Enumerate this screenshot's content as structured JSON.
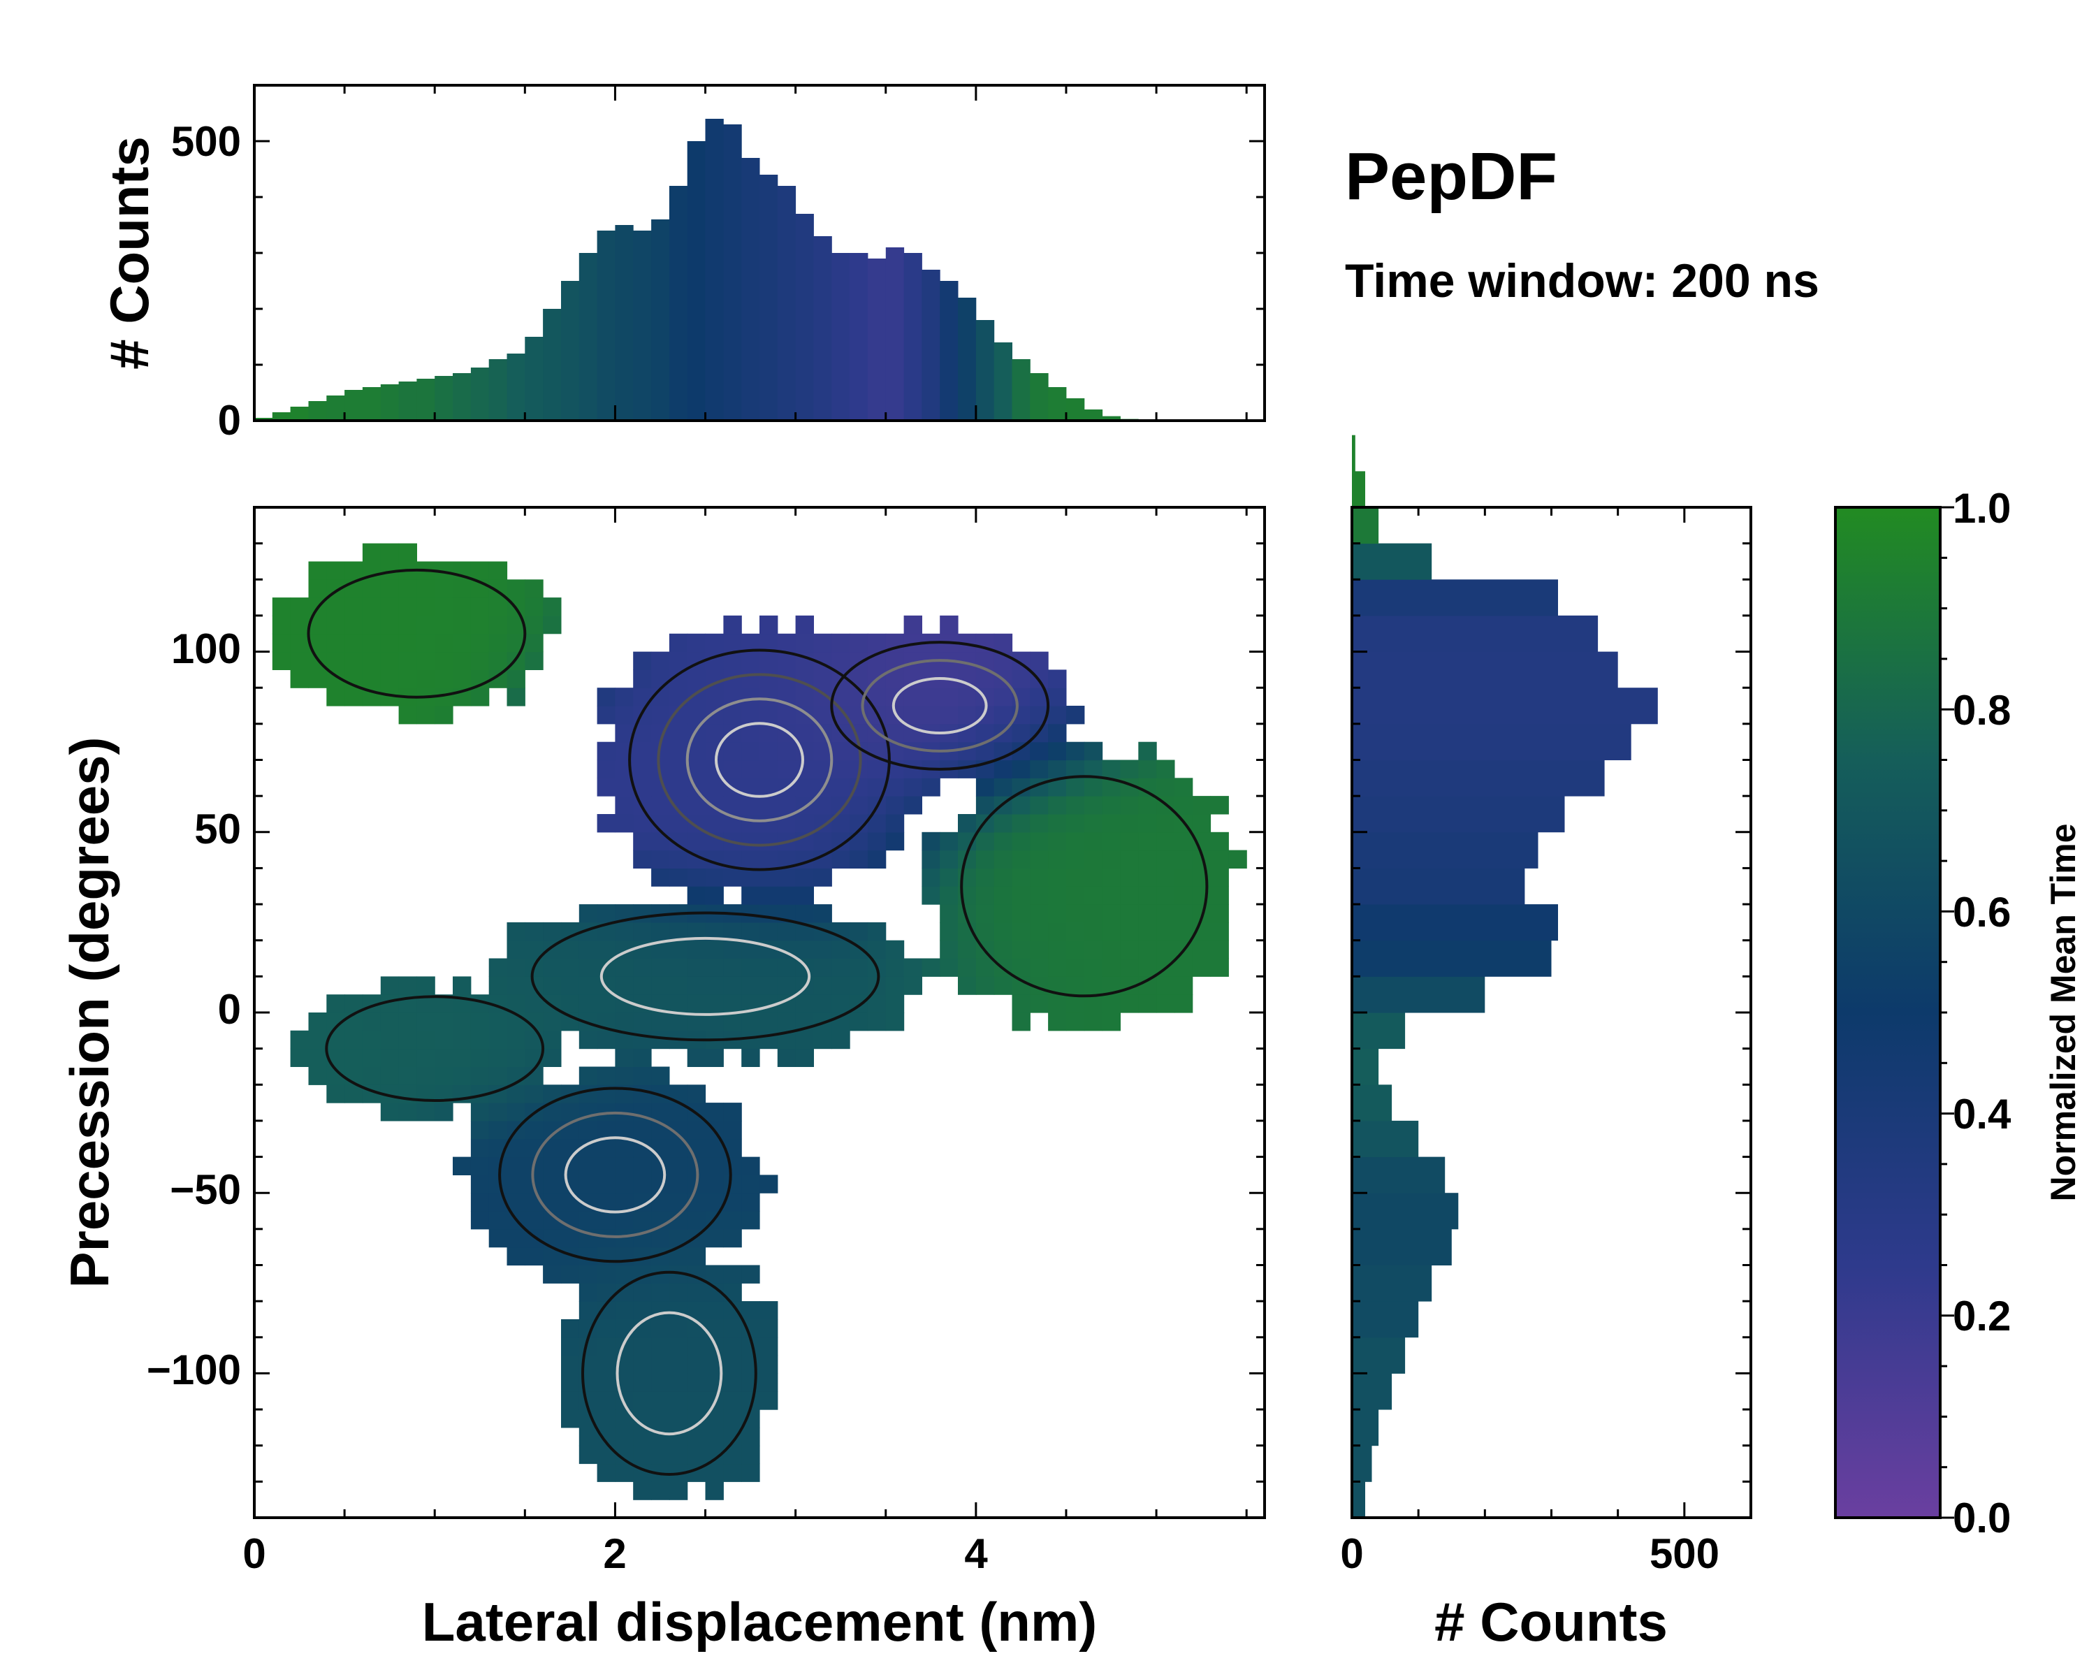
{
  "title": "PepDF",
  "subtitle": "Time window: 200 ns",
  "colors": {
    "low": "#6a3fa0",
    "mid_low": "#2e3a8c",
    "mid": "#0d3a6b",
    "mid_high": "#155e5a",
    "high": "#228b22",
    "contour_dark": "#111111",
    "contour_light": "#cccccc"
  },
  "chart_data": [
    {
      "id": "joint",
      "type": "heatmap",
      "xlabel": "Lateral displacement (nm)",
      "ylabel": "Precession (degrees)",
      "xlim": [
        0,
        5.6
      ],
      "ylim": [
        -140,
        140
      ],
      "xticks": [
        0,
        2,
        4
      ],
      "xtick_labels": [
        "0",
        "2",
        "4"
      ],
      "yticks": [
        -100,
        -50,
        0,
        50,
        100
      ],
      "ytick_labels": [
        "−100",
        "−50",
        "0",
        "50",
        "100"
      ],
      "color_by": "Normalized Mean Time",
      "regions": [
        {
          "name": "upper-left green lobe",
          "cx": 0.9,
          "cy": 105,
          "rx": 0.75,
          "ry": 22,
          "time": 0.95,
          "density": 0.1
        },
        {
          "name": "upper-central purple cluster",
          "cx": 2.8,
          "cy": 70,
          "rx": 0.9,
          "ry": 38,
          "time": 0.25,
          "density": 0.9
        },
        {
          "name": "upper-right purple cluster",
          "cx": 3.8,
          "cy": 85,
          "rx": 0.75,
          "ry": 22,
          "time": 0.15,
          "density": 0.7
        },
        {
          "name": "right green lobe",
          "cx": 4.6,
          "cy": 35,
          "rx": 0.85,
          "ry": 38,
          "time": 0.9,
          "density": 0.25
        },
        {
          "name": "central teal band",
          "cx": 2.5,
          "cy": 10,
          "rx": 1.2,
          "ry": 22,
          "time": 0.7,
          "density": 0.5
        },
        {
          "name": "left teal arm",
          "cx": 1.0,
          "cy": -10,
          "rx": 0.75,
          "ry": 18,
          "time": 0.75,
          "density": 0.15
        },
        {
          "name": "lower blue cluster",
          "cx": 2.0,
          "cy": -45,
          "rx": 0.8,
          "ry": 30,
          "time": 0.55,
          "density": 0.7
        },
        {
          "name": "lower tail",
          "cx": 2.3,
          "cy": -100,
          "rx": 0.6,
          "ry": 35,
          "time": 0.65,
          "density": 0.4
        }
      ]
    },
    {
      "id": "top_histogram",
      "type": "bar",
      "ylabel": "# Counts",
      "xlim": [
        0,
        5.6
      ],
      "ylim": [
        0,
        600
      ],
      "yticks": [
        0,
        500
      ],
      "ytick_labels": [
        "0",
        "500"
      ],
      "x_start": 0.0,
      "bin_width": 0.1,
      "values": [
        5,
        15,
        25,
        35,
        45,
        55,
        60,
        65,
        70,
        75,
        80,
        85,
        95,
        110,
        120,
        150,
        200,
        250,
        300,
        340,
        350,
        340,
        360,
        420,
        500,
        540,
        530,
        470,
        440,
        420,
        370,
        330,
        300,
        300,
        290,
        310,
        300,
        270,
        250,
        220,
        180,
        140,
        110,
        85,
        60,
        40,
        20,
        8,
        3,
        2,
        1,
        0,
        0,
        0,
        0,
        0
      ],
      "time": [
        0.95,
        0.95,
        0.95,
        0.93,
        0.92,
        0.92,
        0.92,
        0.9,
        0.88,
        0.88,
        0.85,
        0.82,
        0.8,
        0.78,
        0.75,
        0.72,
        0.7,
        0.68,
        0.65,
        0.62,
        0.6,
        0.58,
        0.56,
        0.52,
        0.5,
        0.47,
        0.45,
        0.42,
        0.4,
        0.37,
        0.35,
        0.32,
        0.28,
        0.25,
        0.22,
        0.22,
        0.28,
        0.35,
        0.45,
        0.55,
        0.65,
        0.75,
        0.85,
        0.9,
        0.92,
        0.93,
        0.93,
        0.93,
        0.93,
        0.93,
        0.93,
        0.93,
        0.93,
        0.93,
        0.93,
        0.93
      ]
    },
    {
      "id": "right_histogram",
      "type": "bar",
      "orientation": "horizontal",
      "xlabel": "# Counts",
      "xlim": [
        0,
        600
      ],
      "xticks": [
        0,
        500
      ],
      "xtick_labels": [
        "0",
        "500"
      ],
      "ylim": [
        -140,
        140
      ],
      "y_start": -140,
      "bin_width": 10,
      "values": [
        20,
        30,
        40,
        60,
        80,
        100,
        120,
        150,
        160,
        140,
        100,
        60,
        40,
        80,
        200,
        300,
        310,
        260,
        280,
        320,
        380,
        420,
        460,
        400,
        370,
        310,
        120,
        40,
        20,
        5
      ],
      "time": [
        0.65,
        0.65,
        0.65,
        0.65,
        0.65,
        0.62,
        0.62,
        0.6,
        0.6,
        0.62,
        0.68,
        0.72,
        0.74,
        0.72,
        0.62,
        0.52,
        0.48,
        0.42,
        0.4,
        0.38,
        0.36,
        0.34,
        0.33,
        0.33,
        0.34,
        0.4,
        0.7,
        0.9,
        0.95,
        0.95
      ]
    },
    {
      "id": "colorbar",
      "type": "colorbar",
      "label": "Normalized Mean Time",
      "range": [
        0.0,
        1.0
      ],
      "ticks": [
        0.0,
        0.2,
        0.4,
        0.6,
        0.8,
        1.0
      ],
      "tick_labels": [
        "0.0",
        "0.2",
        "0.4",
        "0.6",
        "0.8",
        "1.0"
      ]
    }
  ]
}
